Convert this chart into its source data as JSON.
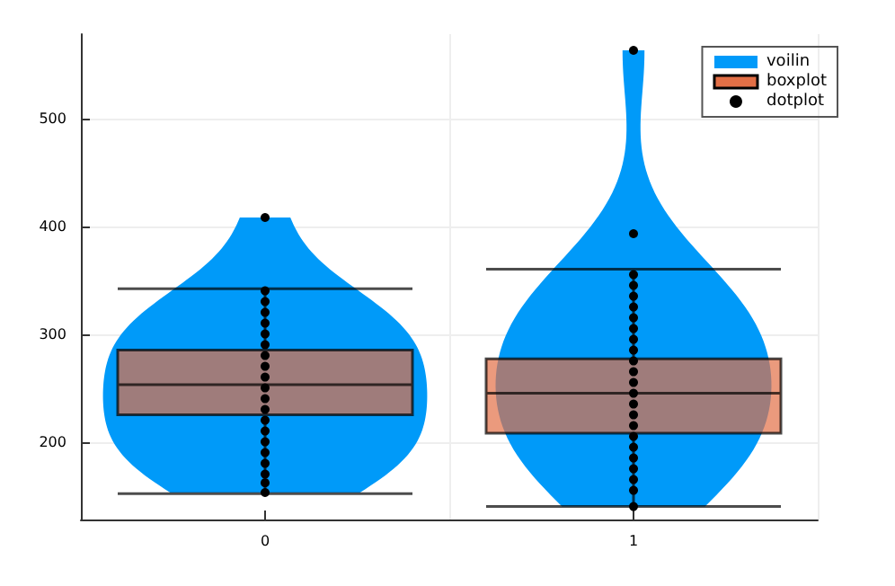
{
  "chart_data": {
    "type": "box",
    "categories": [
      "0",
      "1"
    ],
    "ylim": [
      128,
      578
    ],
    "yticks": [
      200,
      300,
      400,
      500
    ],
    "grid": true,
    "legend": "top right",
    "series": [
      {
        "name": "voilin",
        "type": "area",
        "color": "#009af9",
        "values": [
          null,
          null
        ]
      },
      {
        "name": "boxplot",
        "color": "#e26f46",
        "boxes": [
          {
            "low": 152,
            "q1": 225,
            "median": 253,
            "q3": 285,
            "high": 342
          },
          {
            "low": 140,
            "q1": 208,
            "median": 245,
            "q3": 277,
            "high": 360
          }
        ]
      },
      {
        "name": "dotplot",
        "type": "scatter",
        "color": "#000000",
        "x": [
          "0",
          "0",
          "0",
          "0",
          "0",
          "0",
          "0",
          "0",
          "0",
          "0",
          "0",
          "0",
          "0",
          "0",
          "0",
          "0",
          "0",
          "0",
          "0",
          "0",
          "0",
          "1",
          "1",
          "1",
          "1",
          "1",
          "1",
          "1",
          "1",
          "1",
          "1",
          "1",
          "1",
          "1",
          "1",
          "1",
          "1",
          "1",
          "1",
          "1",
          "1",
          "1",
          "1",
          "1",
          "1"
        ],
        "values": [
          408,
          340,
          330,
          320,
          310,
          300,
          290,
          280,
          270,
          260,
          250,
          240,
          230,
          220,
          210,
          200,
          190,
          180,
          170,
          162,
          153,
          563,
          393,
          355,
          345,
          335,
          325,
          315,
          305,
          295,
          285,
          275,
          265,
          255,
          245,
          235,
          225,
          215,
          205,
          195,
          185,
          175,
          165,
          155,
          140
        ]
      }
    ]
  }
}
